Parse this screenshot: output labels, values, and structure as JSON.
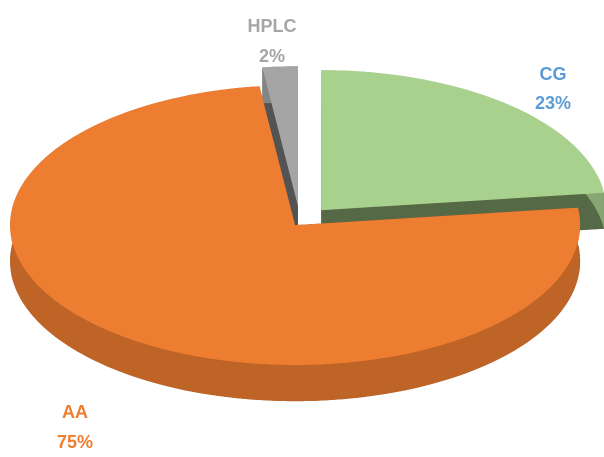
{
  "chart_data": {
    "type": "pie",
    "categories": [
      "CG",
      "AA",
      "HPLC"
    ],
    "values": [
      23,
      75,
      2
    ],
    "value_labels": [
      "23%",
      "75%",
      "2%"
    ],
    "colors": [
      "#a9d18e",
      "#ed7d31",
      "#a5a5a5"
    ],
    "label_colors": [
      "#5b9bd5",
      "#ed7d31",
      "#a5a5a5"
    ]
  }
}
